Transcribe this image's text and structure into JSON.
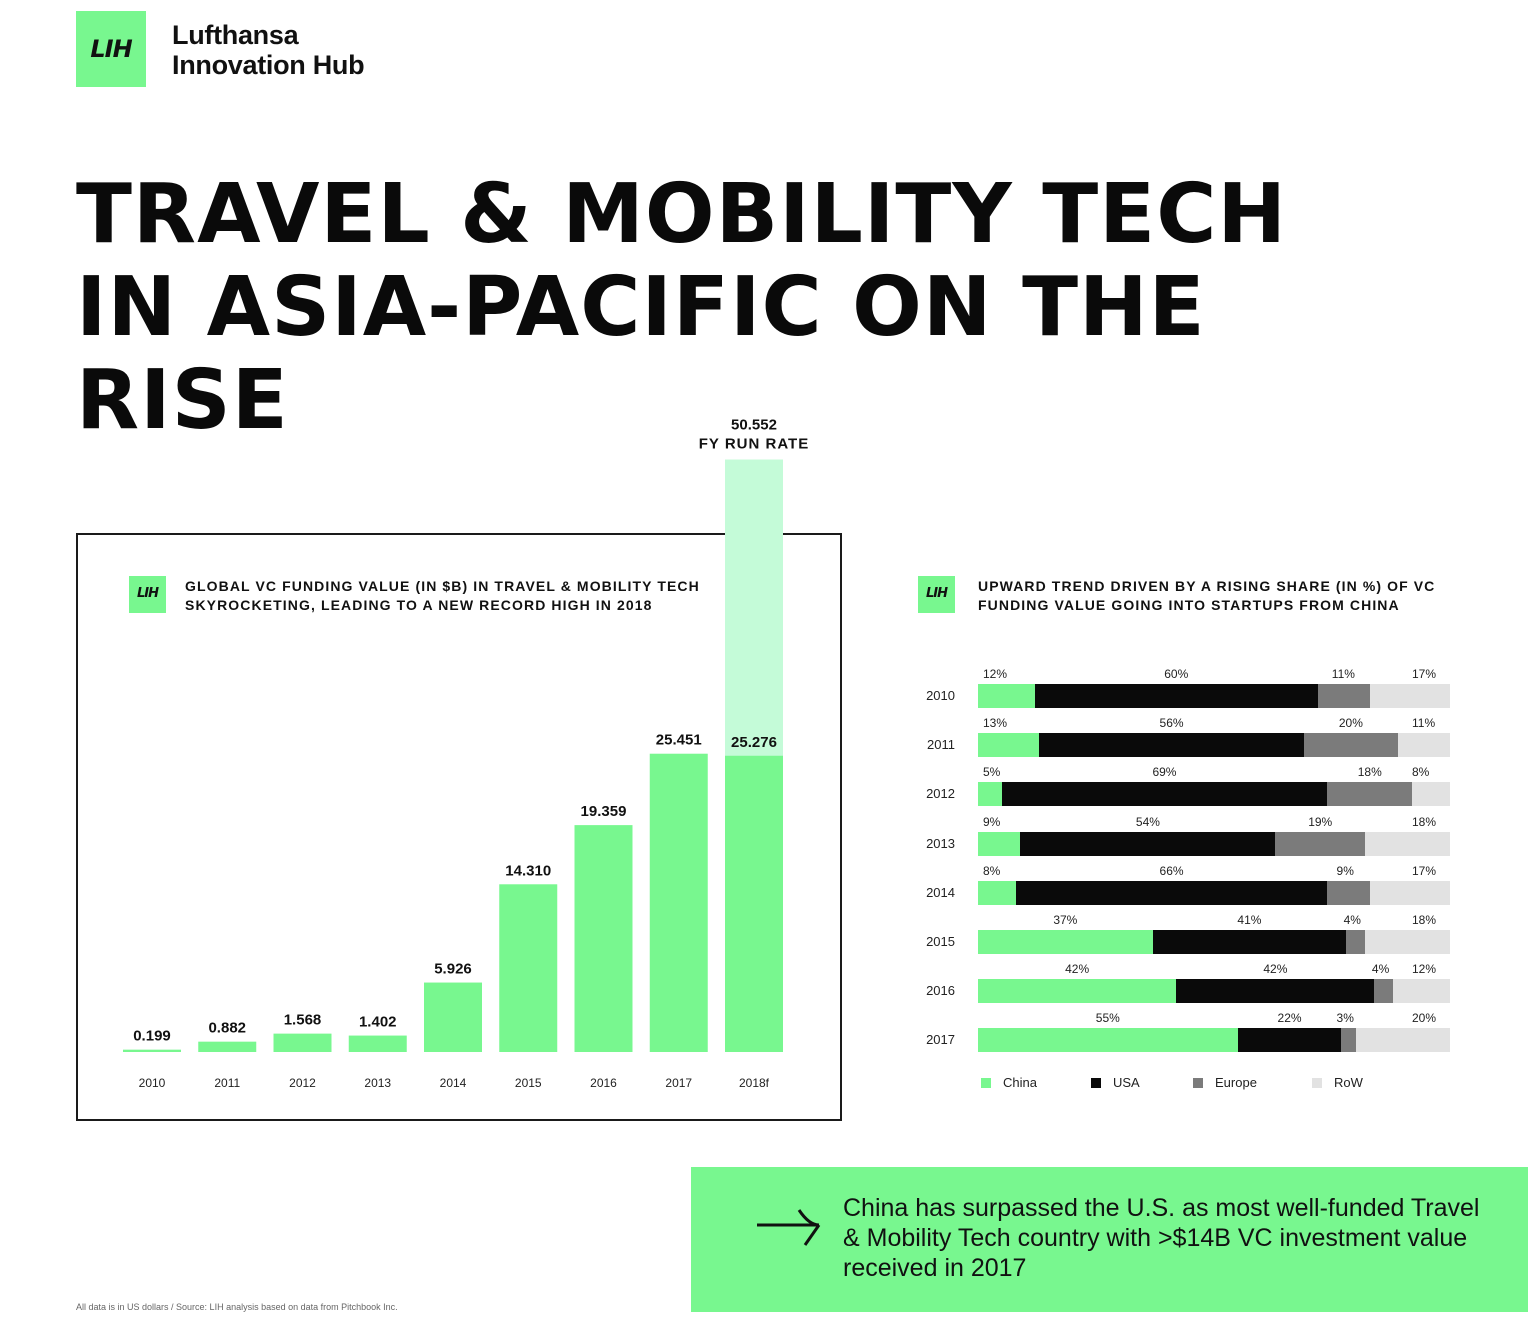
{
  "brand": {
    "logo_text": "LIH",
    "name_line1": "Lufthansa",
    "name_line2": "Innovation Hub"
  },
  "headline": {
    "line1": "TRAVEL & MOBILITY TECH",
    "line2": "IN ASIA-PACIFIC ON THE RISE"
  },
  "colors": {
    "green": "#78f78f",
    "green_light": "#c4fbd8",
    "usa": "#0a0a0a",
    "europe": "#7b7b7b",
    "row": "#e2e2e2"
  },
  "chart_data": [
    {
      "type": "bar",
      "title": "GLOBAL VC FUNDING VALUE (IN $B) IN TRAVEL & MOBILITY TECH SKYROCKETING, LEADING TO A NEW RECORD HIGH IN 2018",
      "xlabel": "",
      "ylabel": "",
      "categories": [
        "2010",
        "2011",
        "2012",
        "2013",
        "2014",
        "2015",
        "2016",
        "2017",
        "2018f"
      ],
      "values": [
        0.199,
        0.882,
        1.568,
        1.402,
        5.926,
        14.31,
        19.359,
        25.451,
        25.276
      ],
      "value_labels": [
        "0.199",
        "0.882",
        "1.568",
        "1.402",
        "5.926",
        "14.310",
        "19.359",
        "25.451",
        "25.276"
      ],
      "run_rate": {
        "category": "2018f",
        "value": 50.552,
        "value_label": "50.552",
        "label": "FY RUN RATE"
      },
      "grid": false
    },
    {
      "type": "bar",
      "orientation": "horizontal-stacked-100",
      "title": "UPWARD TREND DRIVEN BY A RISING SHARE (IN %) OF VC FUNDING VALUE GOING INTO STARTUPS FROM CHINA",
      "categories": [
        "2010",
        "2011",
        "2012",
        "2013",
        "2014",
        "2015",
        "2016",
        "2017"
      ],
      "series": [
        {
          "name": "China",
          "values": [
            12,
            13,
            5,
            9,
            8,
            37,
            42,
            55
          ]
        },
        {
          "name": "USA",
          "values": [
            60,
            56,
            69,
            54,
            66,
            41,
            42,
            22
          ]
        },
        {
          "name": "Europe",
          "values": [
            11,
            20,
            18,
            19,
            9,
            4,
            4,
            3
          ]
        },
        {
          "name": "RoW",
          "values": [
            17,
            11,
            8,
            18,
            17,
            18,
            12,
            20
          ]
        }
      ],
      "legend": "bottom",
      "grid": false
    }
  ],
  "callout": {
    "text": "China has surpassed the U.S. as most well-funded Travel & Mobility Tech country with >$14B VC investment value received in 2017"
  },
  "footnote": "All data is in US dollars / Source: LIH analysis based on data from Pitchbook Inc."
}
